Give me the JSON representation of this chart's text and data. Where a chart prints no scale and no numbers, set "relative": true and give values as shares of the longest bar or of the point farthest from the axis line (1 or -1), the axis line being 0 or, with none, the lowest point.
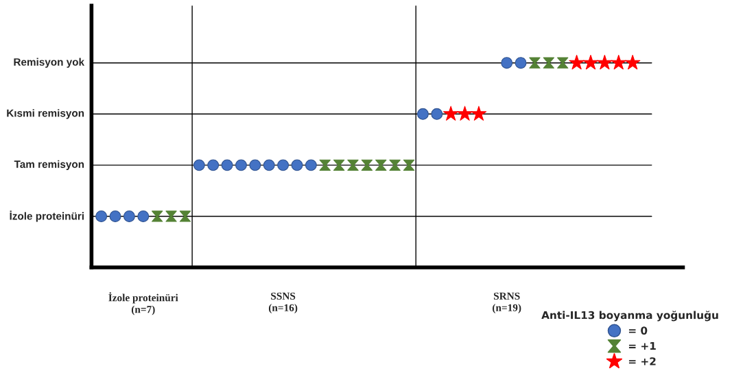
{
  "chart_data": {
    "type": "scatter",
    "relative": true,
    "categories": [
      null,
      null,
      null,
      "İzole proteinüri\n(n=7)",
      null,
      null,
      null,
      null,
      null,
      null,
      null,
      null,
      null,
      "SSNS\n(n=16)",
      null,
      null,
      null,
      null,
      null,
      null,
      null,
      null,
      null,
      null,
      null,
      null,
      null,
      null,
      null,
      "SRNS\n(n=19)",
      null,
      null,
      null,
      null,
      null,
      null,
      null,
      null,
      null,
      null,
      null,
      null
    ],
    "grid": "y",
    "legend": "bottom right",
    "legend_title": "Anti-IL13 boyanma yoğunluğu",
    "series": [
      {
        "name": "= 0",
        "color": "#4472c4",
        "marker": "circle",
        "values": [
          0.25,
          0.25,
          0.25,
          0.25,
          null,
          null,
          null,
          0.5,
          0.5,
          0.5,
          0.5,
          0.5,
          0.5,
          0.5,
          0.5,
          0.5,
          null,
          null,
          null,
          null,
          null,
          null,
          null,
          0.75,
          0.75,
          null,
          null,
          null,
          null,
          1,
          1,
          null,
          null,
          null,
          null,
          null,
          null,
          null,
          null,
          null,
          null,
          null
        ]
      },
      {
        "name": "= +1",
        "color": "#548235",
        "values": [
          null,
          null,
          null,
          null,
          0.25,
          0.25,
          0.25,
          null,
          null,
          null,
          null,
          null,
          null,
          null,
          null,
          null,
          0.5,
          0.5,
          0.5,
          0.5,
          0.5,
          0.5,
          0.5,
          null,
          null,
          null,
          null,
          null,
          null,
          null,
          null,
          1,
          1,
          1,
          null,
          null,
          null,
          null,
          null,
          null,
          null,
          null
        ]
      },
      {
        "name": "= +2",
        "color": "#ff0000",
        "marker": "star",
        "values": [
          null,
          null,
          null,
          null,
          null,
          null,
          null,
          null,
          null,
          null,
          null,
          null,
          null,
          null,
          null,
          null,
          null,
          null,
          null,
          null,
          null,
          null,
          null,
          null,
          null,
          0.75,
          0.75,
          0.75,
          null,
          null,
          null,
          null,
          null,
          null,
          1,
          1,
          1,
          1,
          1,
          null,
          null,
          null
        ]
      }
    ],
    "annotations": [
      "İzole proteinüri",
      "Tam remisyon",
      "Kısmi remisyon",
      "Remisyon yok"
    ]
  }
}
